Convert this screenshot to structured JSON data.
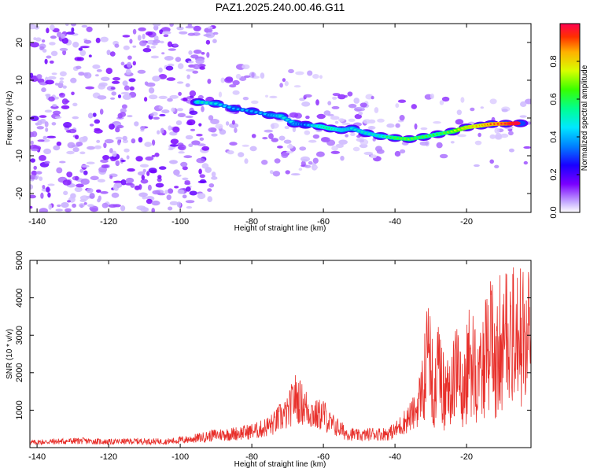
{
  "title": "PAZ1.2025.240.00.46.G11",
  "chart_data": [
    {
      "type": "heatmap",
      "xlabel": "Height of straight line (km)",
      "ylabel": "Frequency (Hz)",
      "xlim": [
        -142,
        -2
      ],
      "ylim": [
        -25,
        25
      ],
      "xticks": [
        -140,
        -120,
        -100,
        -80,
        -60,
        -40,
        -20
      ],
      "yticks": [
        -20,
        -10,
        0,
        10,
        20
      ],
      "colorbar": {
        "label": "Normalized spectral amplitude",
        "ticks": [
          0.0,
          0.2,
          0.4,
          0.6,
          0.8
        ],
        "range": [
          0,
          1
        ]
      },
      "ridge": [
        {
          "x": -95,
          "y": 4.2,
          "v": 0.42
        },
        {
          "x": -90,
          "y": 3.8,
          "v": 0.36
        },
        {
          "x": -85,
          "y": 2.5,
          "v": 0.3
        },
        {
          "x": -80,
          "y": 1.8,
          "v": 0.3
        },
        {
          "x": -75,
          "y": 0.8,
          "v": 0.32
        },
        {
          "x": -72,
          "y": 0.5,
          "v": 0.38
        },
        {
          "x": -68,
          "y": -1.5,
          "v": 0.34
        },
        {
          "x": -65,
          "y": -1.8,
          "v": 0.28
        },
        {
          "x": -61,
          "y": -2.2,
          "v": 0.45
        },
        {
          "x": -58,
          "y": -2.8,
          "v": 0.5
        },
        {
          "x": -55,
          "y": -3.2,
          "v": 0.42
        },
        {
          "x": -52,
          "y": -2.8,
          "v": 0.38
        },
        {
          "x": -48,
          "y": -4.0,
          "v": 0.4
        },
        {
          "x": -44,
          "y": -4.8,
          "v": 0.42
        },
        {
          "x": -40,
          "y": -5.3,
          "v": 0.55
        },
        {
          "x": -36,
          "y": -5.6,
          "v": 0.58
        },
        {
          "x": -32,
          "y": -5.0,
          "v": 0.55
        },
        {
          "x": -28,
          "y": -4.3,
          "v": 0.52
        },
        {
          "x": -24,
          "y": -3.6,
          "v": 0.6
        },
        {
          "x": -20,
          "y": -2.5,
          "v": 0.7
        },
        {
          "x": -16,
          "y": -2.0,
          "v": 0.76
        },
        {
          "x": -13,
          "y": -1.6,
          "v": 0.82
        },
        {
          "x": -9,
          "y": -1.5,
          "v": 0.88
        },
        {
          "x": -5,
          "y": -1.4,
          "v": 1.0
        }
      ]
    },
    {
      "type": "line",
      "xlabel": "Height of straight line (km)",
      "ylabel": "SNR (10 * v/v)",
      "xlim": [
        -142,
        -2
      ],
      "ylim": [
        0,
        5000
      ],
      "xticks": [
        -140,
        -120,
        -100,
        -80,
        -60,
        -40,
        -20
      ],
      "yticks": [
        1000,
        2000,
        3000,
        4000,
        5000
      ],
      "series": [
        {
          "color": "#e8302b",
          "x": [
            -142,
            -135,
            -128,
            -120,
            -112,
            -104,
            -98,
            -94,
            -90,
            -86,
            -82,
            -78,
            -74,
            -72,
            -70,
            -68,
            -66,
            -64,
            -62,
            -60,
            -58,
            -56,
            -54,
            -52,
            -50,
            -48,
            -46,
            -44,
            -42,
            -40,
            -38,
            -36,
            -34,
            -32,
            -31,
            -30,
            -29,
            -28,
            -27,
            -26,
            -25,
            -24,
            -23,
            -22,
            -21,
            -20,
            -19,
            -18,
            -17,
            -16,
            -15,
            -14,
            -13,
            -12,
            -11,
            -10,
            -9,
            -8,
            -7,
            -6,
            -5,
            -4,
            -3,
            -2
          ],
          "y": [
            150,
            180,
            200,
            170,
            190,
            180,
            240,
            300,
            380,
            400,
            450,
            520,
            700,
            900,
            1000,
            1500,
            1300,
            1100,
            950,
            1000,
            700,
            600,
            450,
            400,
            350,
            380,
            420,
            400,
            420,
            500,
            700,
            900,
            1100,
            2000,
            3000,
            2500,
            1800,
            2600,
            2200,
            1600,
            2000,
            2800,
            2300,
            2600,
            2000,
            2400,
            3000,
            2800,
            2500,
            2300,
            3000,
            3100,
            3400,
            2800,
            3600,
            3400,
            3800,
            3500,
            3600,
            3400,
            3700,
            3800,
            3700,
            3600
          ]
        }
      ]
    }
  ]
}
